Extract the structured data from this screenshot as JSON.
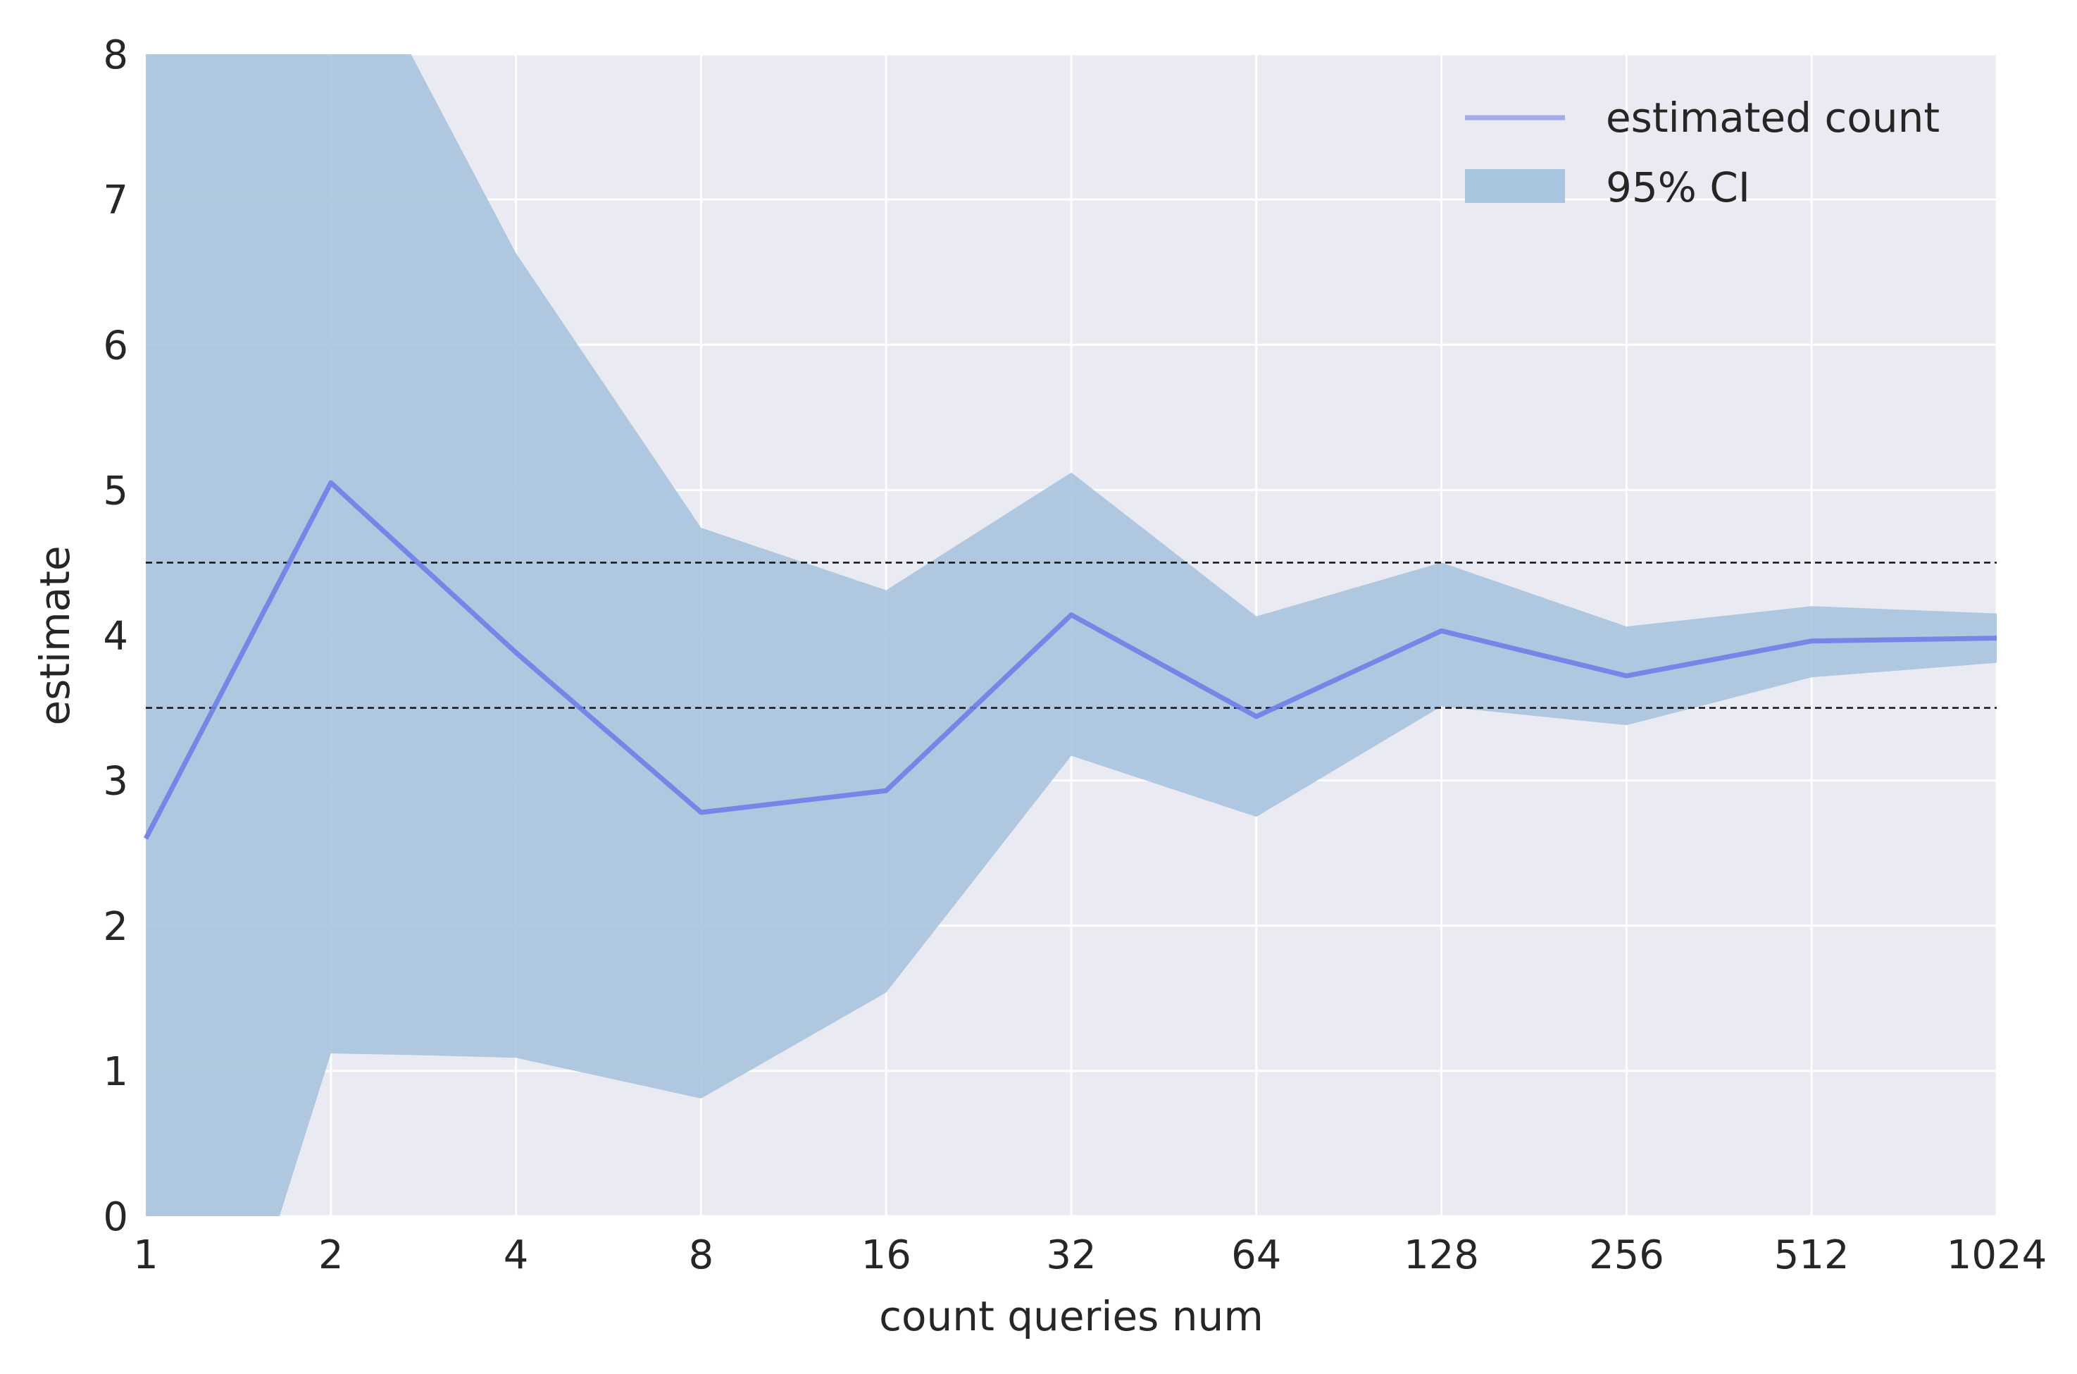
{
  "chart_data": {
    "type": "line",
    "x_categories": [
      "1",
      "2",
      "4",
      "8",
      "16",
      "32",
      "64",
      "128",
      "256",
      "512",
      "1024"
    ],
    "y_ticks": [
      "0",
      "1",
      "2",
      "3",
      "4",
      "5",
      "6",
      "7",
      "8"
    ],
    "ylim": [
      0,
      8
    ],
    "x_scale": "log2",
    "xlabel": "count queries num",
    "ylabel": "estimate",
    "grid": true,
    "legend_position": "top-right",
    "series": [
      {
        "name": "estimated count",
        "x": [
          1,
          2,
          4,
          8,
          16,
          32,
          64,
          128,
          256,
          512,
          1024
        ],
        "values": [
          2.6,
          5.05,
          3.88,
          2.78,
          2.93,
          4.14,
          3.44,
          4.03,
          3.72,
          3.96,
          3.98
        ],
        "color": "#6f7ee8"
      }
    ],
    "ci_band": {
      "name": "95% CI",
      "x": [
        1,
        1.65,
        2,
        2.7,
        4,
        8,
        16,
        32,
        64,
        128,
        256,
        512,
        1024
      ],
      "upper": [
        8,
        8,
        8,
        8,
        6.63,
        4.74,
        4.31,
        5.12,
        4.13,
        4.5,
        4.06,
        4.2,
        4.15
      ],
      "lower": [
        0,
        0,
        1.12,
        1.11,
        1.09,
        0.81,
        1.54,
        3.17,
        2.75,
        3.51,
        3.38,
        3.71,
        3.81
      ],
      "color": "#a9c4de"
    },
    "reference_lines": [
      4.5,
      3.5
    ]
  }
}
